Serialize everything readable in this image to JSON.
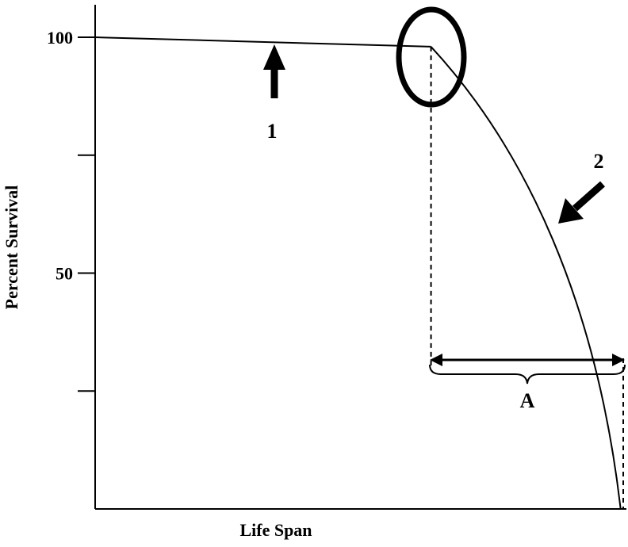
{
  "chart_data": {
    "type": "line",
    "xlabel": "Life Span",
    "ylabel": "Percent Survival",
    "yticks": [
      {
        "value": 100,
        "label": "100"
      },
      {
        "value": 75,
        "label": ""
      },
      {
        "value": 50,
        "label": "50"
      },
      {
        "value": 25,
        "label": ""
      }
    ],
    "ylim": [
      0,
      100
    ],
    "xlim": [
      0,
      100
    ],
    "series": [
      {
        "x": [
          0,
          63.6,
          70,
          76,
          82,
          88,
          94,
          97,
          99.5
        ],
        "y": [
          100,
          98,
          90,
          81,
          70,
          56,
          37,
          23,
          0
        ]
      }
    ],
    "annotations": {
      "marker_1": "1",
      "marker_2": "2",
      "range_label": "A"
    }
  }
}
